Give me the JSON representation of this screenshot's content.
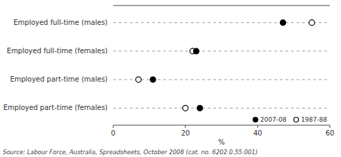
{
  "chart_data": {
    "type": "dot",
    "orientation": "horizontal",
    "categories": [
      "Employed full-time (males)",
      "Employed full-time (females)",
      "Employed part-time (males)",
      "Employed part-time (females)"
    ],
    "series": [
      {
        "name": "2007-08",
        "color": "#000000",
        "marker": "circle",
        "values": [
          47.0,
          23.0,
          11.0,
          24.0
        ]
      },
      {
        "name": "1987-88",
        "color": "#000000",
        "marker": "open-circle",
        "values": [
          55.0,
          22.0,
          7.0,
          20.0
        ]
      }
    ],
    "xlabel": "%",
    "xlim": [
      0,
      60
    ],
    "xticks": [
      0,
      20,
      40,
      60
    ],
    "legend": "lower right",
    "grid": false,
    "annotations": [
      "Source: Labour Force, Australia, Spreadsheets, October 2008 (cat. no. 6202.0.55.001)"
    ]
  }
}
